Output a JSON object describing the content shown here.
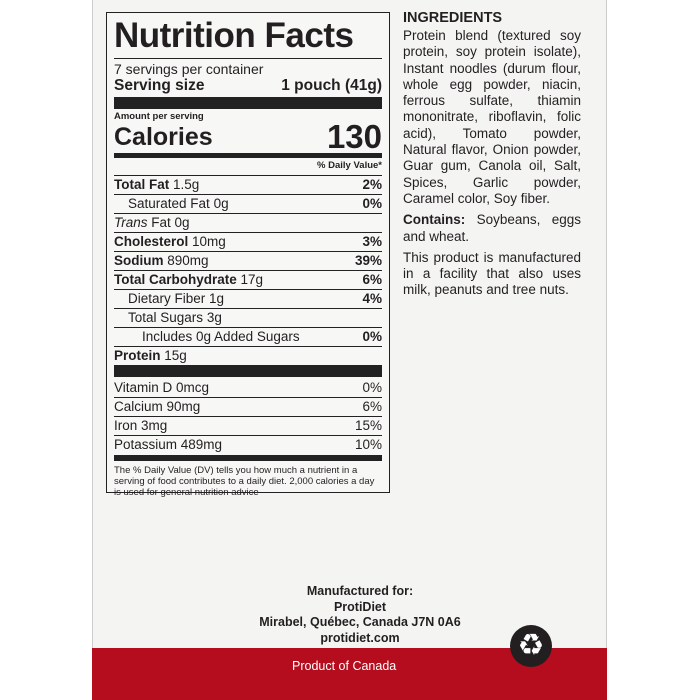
{
  "nutrition": {
    "title": "Nutrition Facts",
    "servings": "7 servings per container",
    "serving_size_label": "Serving size",
    "serving_size_value": "1 pouch (41g)",
    "amount_per_serving": "Amount per serving",
    "calories_label": "Calories",
    "calories_value": "130",
    "dv_header": "% Daily Value*",
    "rows": [
      {
        "label": "Total Fat",
        "amount": "1.5g",
        "dv": "2%"
      },
      {
        "label": "Saturated Fat",
        "amount": "0g",
        "dv": "0%"
      },
      {
        "label": "Trans",
        "amount": "Fat 0g",
        "dv": ""
      },
      {
        "label": "Cholesterol",
        "amount": "10mg",
        "dv": "3%"
      },
      {
        "label": "Sodium",
        "amount": "890mg",
        "dv": "39%"
      },
      {
        "label": "Total Carbohydrate",
        "amount": "17g",
        "dv": "6%"
      },
      {
        "label": "Dietary Fiber",
        "amount": "1g",
        "dv": "4%"
      },
      {
        "label": "Total Sugars",
        "amount": "3g",
        "dv": ""
      },
      {
        "label": "Includes 0g Added Sugars",
        "amount": "",
        "dv": "0%"
      },
      {
        "label": "Protein",
        "amount": "15g",
        "dv": ""
      }
    ],
    "vitamins": [
      {
        "label": "Vitamin D 0mcg",
        "dv": "0%"
      },
      {
        "label": "Calcium 90mg",
        "dv": "6%"
      },
      {
        "label": "Iron 3mg",
        "dv": "15%"
      },
      {
        "label": "Potassium 489mg",
        "dv": "10%"
      }
    ],
    "footnote": "The % Daily Value (DV) tells you how much a nutrient in a serving of food contributes to a daily diet. 2,000 calories a day is used for general nutrition advice"
  },
  "ingredients": {
    "heading": "INGREDIENTS",
    "text": "Protein blend (textured soy protein, soy protein isolate), Instant noodles (durum flour, whole egg powder, niacin, ferrous sulfate, thiamin mononitrate, riboflavin, folic acid), Tomato powder, Natural flavor, Onion powder, Guar gum, Canola oil, Salt, Spices, Garlic powder, Caramel color, Soy fiber.",
    "contains_label": "Contains:",
    "contains_text": " Soybeans, eggs and wheat.",
    "facility": "This product is manufactured in a facility that also uses milk, peanuts and tree nuts."
  },
  "manufacturer": {
    "line1": "Manufactured for:",
    "line2": "ProtiDiet",
    "line3": "Mirabel, Québec, Canada  J7N 0A6",
    "line4": "protidiet.com"
  },
  "footer": {
    "origin": "Product of Canada",
    "recycle_icon": "recycle-icon",
    "band_color": "#b50d1e"
  }
}
